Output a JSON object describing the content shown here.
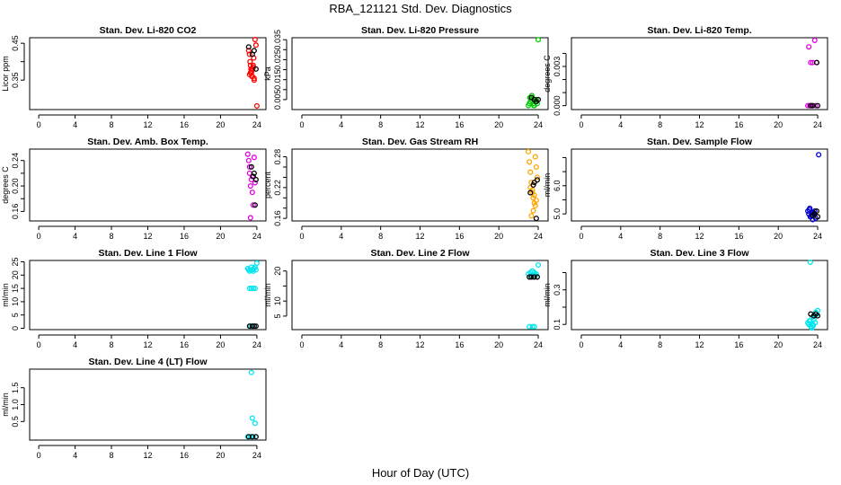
{
  "title": "RBA_121121  Std. Dev. Diagnostics",
  "xlabel": "Hour of Day (UTC)",
  "colors": {
    "black": "#000000",
    "red": "#ff0000",
    "green": "#00cc00",
    "magenta": "#e000e0",
    "orange": "#ffa500",
    "blue": "#0000cc",
    "cyan": "#00e5ee"
  },
  "chart_data": [
    {
      "type": "scatter",
      "title": "Stan. Dev. Li-820 CO2",
      "ylabel": "Licor ppm",
      "xlim": [
        -1,
        25
      ],
      "ylim": [
        0.27,
        0.465
      ],
      "xticks": [
        0,
        4,
        8,
        12,
        16,
        20,
        24
      ],
      "yticks": [
        0.35,
        0.4,
        0.45
      ],
      "ytick_labels": [
        "0.35",
        "0.45"
      ],
      "series": [
        {
          "name": "red",
          "color": "red",
          "x": [
            23.1,
            23.2,
            23.25,
            23.3,
            23.35,
            23.4,
            23.45,
            23.5,
            23.55,
            23.6,
            23.65,
            23.7,
            23.2,
            23.3,
            23.4,
            23.5,
            23.6,
            23.7,
            23.8,
            23.9,
            24.0
          ],
          "y": [
            0.43,
            0.42,
            0.4,
            0.39,
            0.38,
            0.37,
            0.36,
            0.36,
            0.38,
            0.39,
            0.41,
            0.35,
            0.365,
            0.37,
            0.375,
            0.38,
            0.385,
            0.355,
            0.46,
            0.445,
            0.28
          ]
        },
        {
          "name": "black",
          "color": "black",
          "x": [
            23.1,
            23.5,
            23.7,
            23.9
          ],
          "y": [
            0.44,
            0.42,
            0.43,
            0.38
          ]
        }
      ]
    },
    {
      "type": "scatter",
      "title": "Stan. Dev. Li-820 Pressure",
      "ylabel": "kPa",
      "xlim": [
        -1,
        25
      ],
      "ylim": [
        0.0,
        0.036
      ],
      "xticks": [
        0,
        4,
        8,
        12,
        16,
        20,
        24
      ],
      "yticks": [
        0.005,
        0.01,
        0.015,
        0.02,
        0.025,
        0.03,
        0.035
      ],
      "ytick_labels": [
        "0.005",
        "0.015",
        "0.025",
        "0.035"
      ],
      "series": [
        {
          "name": "green",
          "color": "green",
          "x": [
            23.0,
            23.1,
            23.2,
            23.3,
            23.4,
            23.5,
            23.6,
            23.7,
            23.8,
            23.9,
            23.15,
            23.35,
            23.55,
            23.75,
            24.0
          ],
          "y": [
            0.002,
            0.003,
            0.004,
            0.005,
            0.006,
            0.003,
            0.002,
            0.004,
            0.005,
            0.003,
            0.006,
            0.007,
            0.002,
            0.004,
            0.035
          ]
        },
        {
          "name": "black",
          "color": "black",
          "x": [
            23.3,
            23.6,
            23.8,
            24.0
          ],
          "y": [
            0.006,
            0.005,
            0.004,
            0.005
          ]
        }
      ]
    },
    {
      "type": "scatter",
      "title": "Stan. Dev. Li-820 Temp.",
      "ylabel": "degrees C",
      "xlim": [
        -1,
        25
      ],
      "ylim": [
        -0.0003,
        0.0052
      ],
      "xticks": [
        0,
        4,
        8,
        12,
        16,
        20,
        24
      ],
      "yticks": [
        0.0,
        0.001,
        0.002,
        0.003,
        0.004
      ],
      "ytick_labels": [
        "0.000",
        "0.003"
      ],
      "series": [
        {
          "name": "magenta",
          "color": "magenta",
          "x": [
            23.1,
            23.3,
            23.5,
            23.7,
            23.9,
            23.4,
            23.8,
            23.0,
            23.2
          ],
          "y": [
            0.0045,
            0.0033,
            0.0033,
            0.005,
            0.0033,
            0.0,
            0.0,
            0.0,
            0.0
          ]
        },
        {
          "name": "black",
          "color": "black",
          "x": [
            23.5,
            23.9,
            24.0,
            23.3
          ],
          "y": [
            0.0,
            0.0033,
            0.0,
            0.0
          ]
        }
      ]
    },
    {
      "type": "scatter",
      "title": "Stan. Dev. Amb. Box Temp.",
      "ylabel": "degrees C",
      "xlim": [
        -1,
        25
      ],
      "ylim": [
        0.145,
        0.258
      ],
      "xticks": [
        0,
        4,
        8,
        12,
        16,
        20,
        24
      ],
      "yticks": [
        0.16,
        0.18,
        0.2,
        0.22,
        0.24
      ],
      "ytick_labels": [
        "0.16",
        "0.20",
        "0.24"
      ],
      "series": [
        {
          "name": "magenta",
          "color": "magenta",
          "x": [
            23.0,
            23.1,
            23.2,
            23.3,
            23.4,
            23.5,
            23.6,
            23.7,
            23.2,
            23.5,
            23.8,
            23.3
          ],
          "y": [
            0.25,
            0.24,
            0.22,
            0.2,
            0.21,
            0.19,
            0.17,
            0.245,
            0.23,
            0.215,
            0.205,
            0.15
          ]
        },
        {
          "name": "black",
          "color": "black",
          "x": [
            23.4,
            23.7,
            23.9,
            23.6,
            23.8
          ],
          "y": [
            0.23,
            0.22,
            0.21,
            0.215,
            0.17
          ]
        }
      ]
    },
    {
      "type": "scatter",
      "title": "Stan. Dev. Gas Stream RH",
      "ylabel": "percent",
      "xlim": [
        -1,
        25
      ],
      "ylim": [
        0.155,
        0.295
      ],
      "xticks": [
        0,
        4,
        8,
        12,
        16,
        20,
        24
      ],
      "yticks": [
        0.16,
        0.18,
        0.2,
        0.22,
        0.24,
        0.26,
        0.28
      ],
      "ytick_labels": [
        "0.16",
        "0.22",
        "0.28"
      ],
      "series": [
        {
          "name": "orange",
          "color": "orange",
          "x": [
            23.0,
            23.1,
            23.2,
            23.3,
            23.4,
            23.5,
            23.6,
            23.7,
            23.8,
            23.9,
            23.2,
            23.4,
            23.6,
            23.8,
            23.3,
            23.5,
            23.7
          ],
          "y": [
            0.29,
            0.27,
            0.25,
            0.23,
            0.21,
            0.2,
            0.19,
            0.28,
            0.26,
            0.24,
            0.22,
            0.215,
            0.205,
            0.195,
            0.165,
            0.175,
            0.185
          ]
        },
        {
          "name": "black",
          "color": "black",
          "x": [
            23.2,
            23.5,
            23.6,
            23.9,
            23.8
          ],
          "y": [
            0.21,
            0.225,
            0.23,
            0.235,
            0.16
          ]
        }
      ]
    },
    {
      "type": "scatter",
      "title": "Stan. Dev. Sample Flow",
      "ylabel": "ml/min",
      "xlim": [
        -1,
        25
      ],
      "ylim": [
        4.75,
        7.3
      ],
      "xticks": [
        0,
        4,
        8,
        12,
        16,
        20,
        24
      ],
      "yticks": [
        5.0,
        5.5,
        6.0,
        6.5,
        7.0
      ],
      "ytick_labels": [
        "5.0",
        "6.0"
      ],
      "series": [
        {
          "name": "blue",
          "color": "blue",
          "x": [
            23.0,
            23.1,
            23.2,
            23.3,
            23.4,
            23.5,
            23.6,
            23.7,
            23.8,
            23.15,
            23.35,
            23.55,
            23.25,
            24.1
          ],
          "y": [
            5.1,
            5.0,
            5.2,
            4.9,
            5.05,
            4.8,
            5.0,
            5.1,
            4.85,
            5.15,
            4.95,
            5.05,
            4.9,
            7.1
          ]
        },
        {
          "name": "black",
          "color": "black",
          "x": [
            23.7,
            23.9,
            24.0,
            23.5
          ],
          "y": [
            5.0,
            5.1,
            4.9,
            4.95
          ]
        }
      ]
    },
    {
      "type": "scatter",
      "title": "Stan. Dev. Line 1 Flow",
      "ylabel": "ml/min",
      "xlim": [
        -1,
        25
      ],
      "ylim": [
        -0.5,
        25.5
      ],
      "xticks": [
        0,
        4,
        8,
        12,
        16,
        20,
        24
      ],
      "yticks": [
        0,
        5,
        10,
        15,
        20,
        25
      ],
      "ytick_labels": [
        "0",
        "5",
        "10",
        "15",
        "20",
        "25"
      ],
      "series": [
        {
          "name": "cyan",
          "color": "cyan",
          "x": [
            23.0,
            23.1,
            23.2,
            23.3,
            23.4,
            23.5,
            23.6,
            23.7,
            23.8,
            23.9,
            24.0,
            23.2,
            23.4,
            23.6,
            23.8,
            23.3,
            23.5,
            23.7
          ],
          "y": [
            22.5,
            22.0,
            21.5,
            22.0,
            23.0,
            22.0,
            21.5,
            22.5,
            23.0,
            22.0,
            24.5,
            15.0,
            15.0,
            15.0,
            15.0,
            0.8,
            0.8,
            0.8
          ]
        },
        {
          "name": "black",
          "color": "black",
          "x": [
            23.2,
            23.5,
            23.7,
            23.9
          ],
          "y": [
            0.8,
            0.8,
            0.8,
            0.8
          ]
        }
      ]
    },
    {
      "type": "scatter",
      "title": "Stan. Dev. Line 2 Flow",
      "ylabel": "ml/min",
      "xlim": [
        -1,
        25
      ],
      "ylim": [
        0.5,
        23.5
      ],
      "xticks": [
        0,
        4,
        8,
        12,
        16,
        20,
        24
      ],
      "yticks": [
        5,
        10,
        15,
        20
      ],
      "ytick_labels": [
        "5",
        "10",
        "20"
      ],
      "series": [
        {
          "name": "cyan",
          "color": "cyan",
          "x": [
            23.0,
            23.2,
            23.4,
            23.6,
            23.8,
            24.0,
            23.3,
            23.5,
            23.7,
            23.1,
            23.4,
            23.6
          ],
          "y": [
            19.0,
            19.5,
            20.0,
            19.5,
            19.0,
            22.0,
            18.5,
            18.0,
            18.5,
            1.5,
            1.5,
            1.5
          ]
        },
        {
          "name": "black",
          "color": "black",
          "x": [
            23.1,
            23.3,
            23.6,
            23.9
          ],
          "y": [
            18.0,
            18.0,
            18.0,
            18.0
          ]
        }
      ]
    },
    {
      "type": "scatter",
      "title": "Stan. Dev. Line 3 Flow",
      "ylabel": "ml/min",
      "xlim": [
        -1,
        25
      ],
      "ylim": [
        0.07,
        0.47
      ],
      "xticks": [
        0,
        4,
        8,
        12,
        16,
        20,
        24
      ],
      "yticks": [
        0.1,
        0.2,
        0.3,
        0.4
      ],
      "ytick_labels": [
        "0.1",
        "0.3"
      ],
      "series": [
        {
          "name": "cyan",
          "color": "cyan",
          "x": [
            23.0,
            23.1,
            23.2,
            23.3,
            23.4,
            23.5,
            23.6,
            23.7,
            23.8,
            23.9,
            24.0,
            23.15,
            23.35,
            23.55,
            23.75,
            23.25,
            23.45
          ],
          "y": [
            0.11,
            0.1,
            0.12,
            0.09,
            0.08,
            0.1,
            0.13,
            0.15,
            0.17,
            0.16,
            0.18,
            0.12,
            0.085,
            0.095,
            0.11,
            0.46,
            0.14
          ]
        },
        {
          "name": "black",
          "color": "black",
          "x": [
            23.3,
            23.6,
            23.8,
            24.0
          ],
          "y": [
            0.16,
            0.15,
            0.16,
            0.15
          ]
        }
      ]
    },
    {
      "type": "scatter",
      "title": "Stan. Dev. Line 4 (LT) Flow",
      "ylabel": "ml/min",
      "xlim": [
        -1,
        25
      ],
      "ylim": [
        -0.05,
        2.05
      ],
      "xticks": [
        0,
        4,
        8,
        12,
        16,
        20,
        24
      ],
      "yticks": [
        0.5,
        1.0,
        1.5
      ],
      "ytick_labels": [
        "0.5",
        "1.0",
        "1.5"
      ],
      "series": [
        {
          "name": "cyan",
          "color": "cyan",
          "x": [
            23.0,
            23.4,
            23.5,
            23.8,
            23.3,
            23.6
          ],
          "y": [
            0.05,
            1.95,
            0.6,
            0.45,
            0.05,
            0.05
          ]
        },
        {
          "name": "black",
          "color": "black",
          "x": [
            23.1,
            23.5,
            23.9
          ],
          "y": [
            0.05,
            0.05,
            0.05
          ]
        }
      ]
    }
  ]
}
